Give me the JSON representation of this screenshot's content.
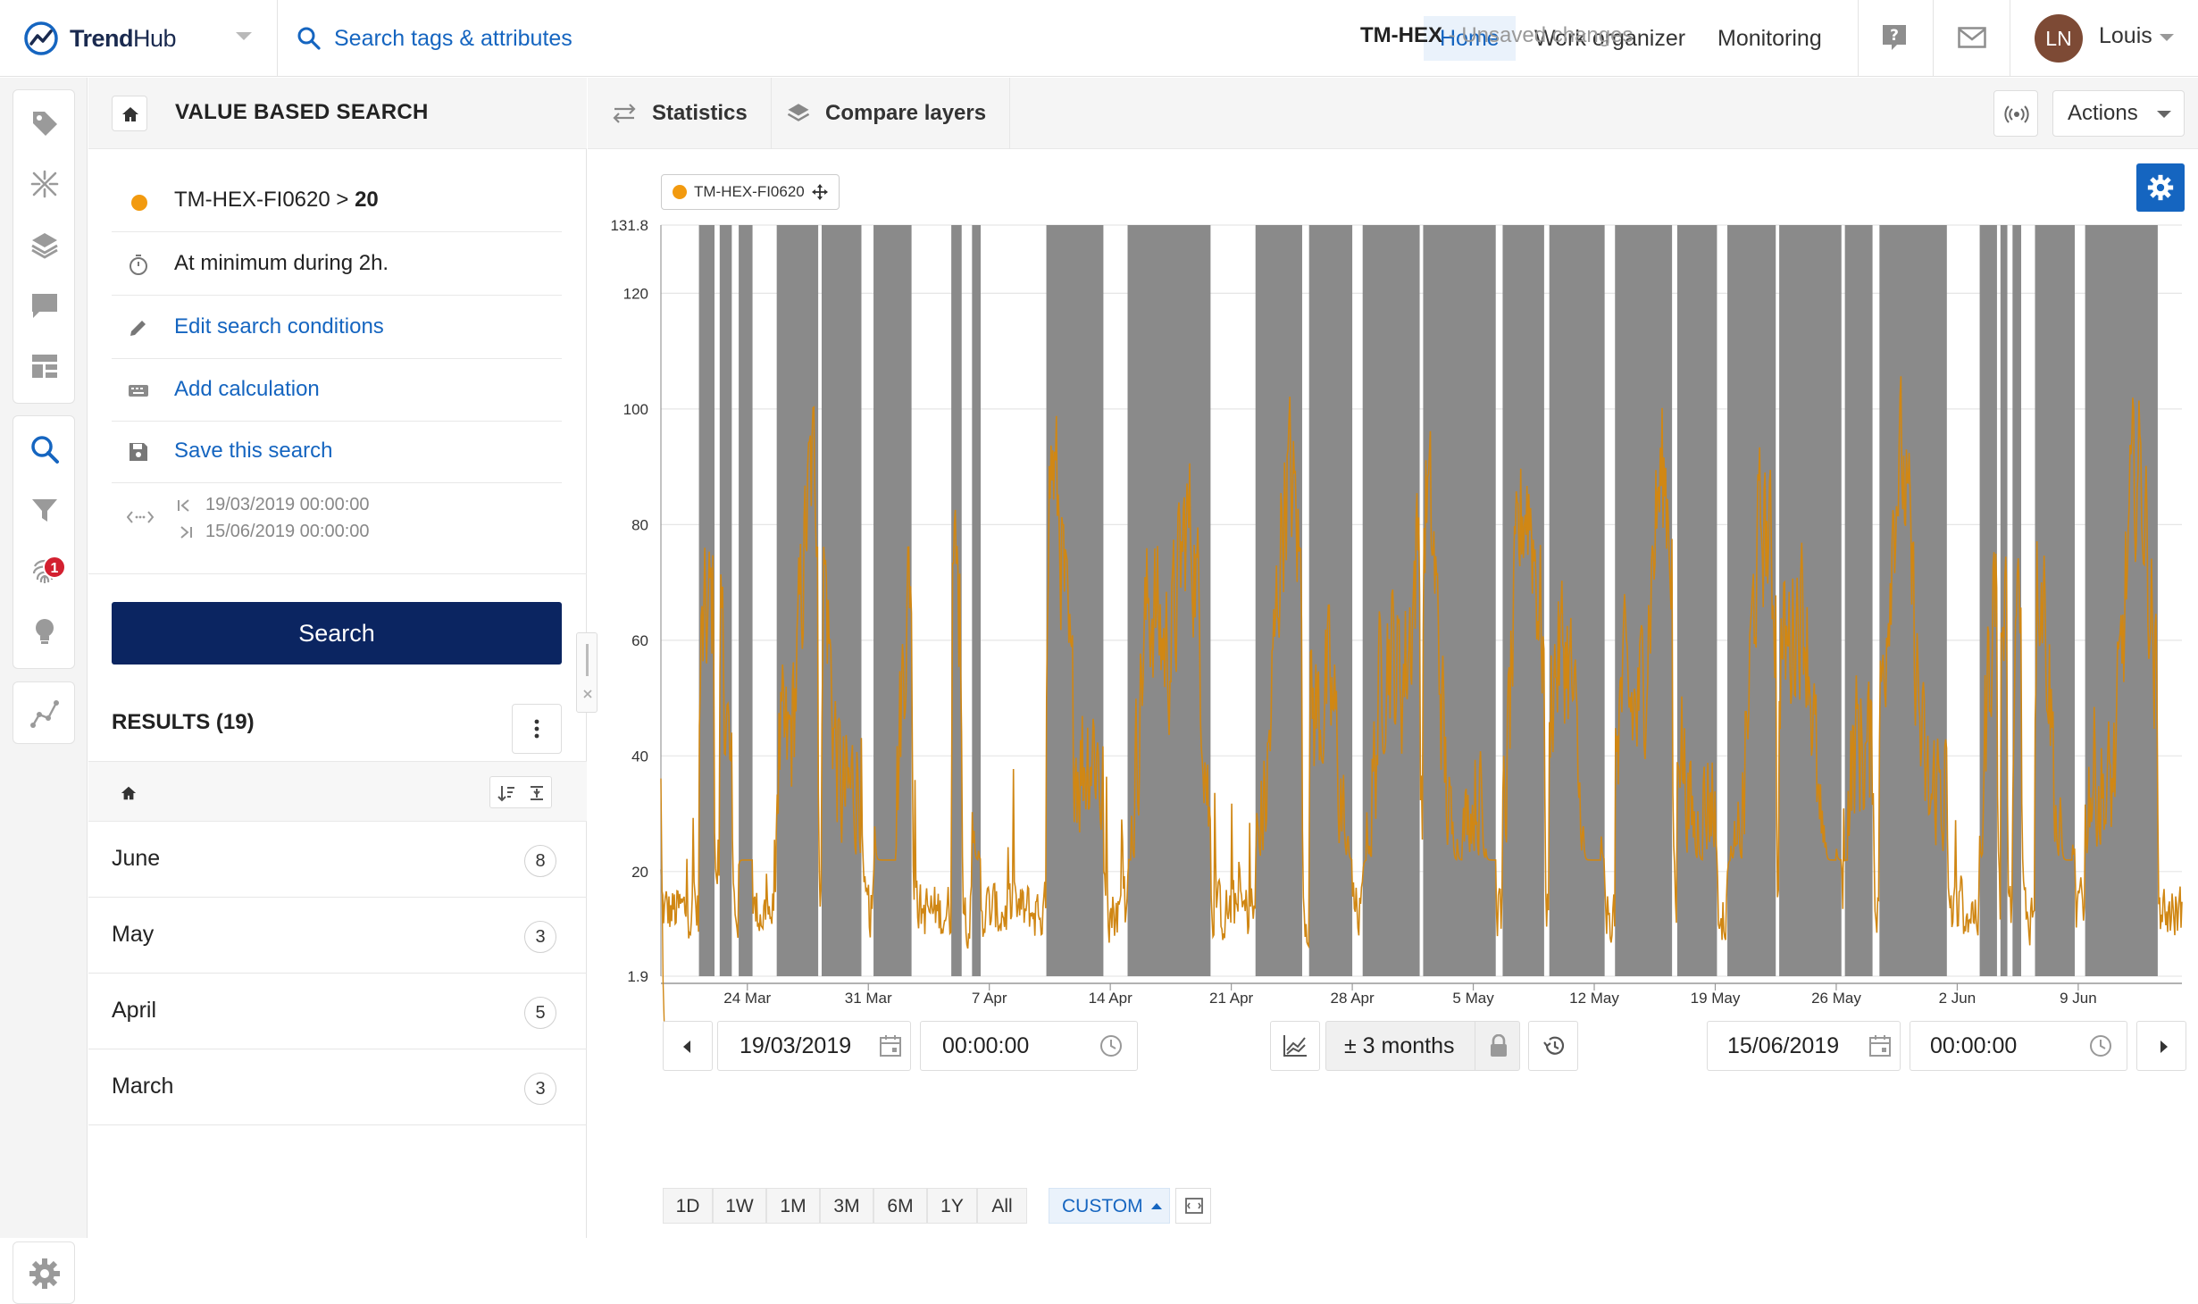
{
  "app": {
    "logo_text_bold": "Trend",
    "logo_text_light": "Hub",
    "search_label": "Search tags & attributes",
    "nav": [
      "Home",
      "Work organizer",
      "Monitoring"
    ],
    "user_initials": "LN",
    "user_name": "Louis",
    "filter_badge": "1"
  },
  "panel": {
    "title": "VALUE BASED SEARCH",
    "condition_tag": "TM-HEX-FI0620 >",
    "condition_value": "20",
    "duration": "At minimum during 2h.",
    "edit_label": "Edit search conditions",
    "calc_label": "Add calculation",
    "save_label": "Save this search",
    "range_start": "19/03/2019 00:00:00",
    "range_end": "15/06/2019 00:00:00",
    "search_button": "Search",
    "results_title": "RESULTS (19)",
    "results": [
      {
        "label": "June",
        "count": "8"
      },
      {
        "label": "May",
        "count": "3"
      },
      {
        "label": "April",
        "count": "5"
      },
      {
        "label": "March",
        "count": "3"
      }
    ]
  },
  "toolbar": {
    "statistics": "Statistics",
    "compare": "Compare layers",
    "view_name": "TM-HEX",
    "view_status": " - Unsaved changes",
    "actions": "Actions"
  },
  "legend": {
    "tag": "TM-HEX-FI0620"
  },
  "controls": {
    "start_date": "19/03/2019",
    "start_time": "00:00:00",
    "range": "± 3 months",
    "end_date": "15/06/2019",
    "end_time": "00:00:00",
    "zoom": [
      "1D",
      "1W",
      "1M",
      "3M",
      "6M",
      "1Y",
      "All"
    ],
    "zoom_custom": "CUSTOM"
  },
  "colors": {
    "accent": "#1565c0",
    "series": "#d08714",
    "series_low": "#f29a0f",
    "highlight": "#8a8a8a",
    "button": "#0b2561"
  },
  "chart_data": {
    "type": "line",
    "series_name": "TM-HEX-FI0620",
    "ylim": [
      1.9,
      131.8
    ],
    "y_ticks_labels": [
      "131.8",
      "120",
      "100",
      "80",
      "60",
      "40",
      "20",
      "1.9"
    ],
    "y_ticks": [
      131.8,
      120,
      100,
      80,
      60,
      40,
      20,
      1.9
    ],
    "x_tick_labels": [
      "24 Mar",
      "31 Mar",
      "7 Apr",
      "14 Apr",
      "21 Apr",
      "28 Apr",
      "5 May",
      "12 May",
      "19 May",
      "26 May",
      "2 Jun",
      "9 Jun"
    ],
    "x_tick_days": [
      5,
      12,
      19,
      26,
      33,
      40,
      47,
      54,
      61,
      68,
      75,
      82
    ],
    "x_range_days": [
      0,
      88
    ],
    "highlight_periods_days": [
      [
        2.2,
        3.1
      ],
      [
        3.4,
        4.1
      ],
      [
        4.5,
        5.3
      ],
      [
        6.7,
        9.1
      ],
      [
        9.3,
        11.6
      ],
      [
        12.3,
        14.5
      ],
      [
        16.8,
        17.4
      ],
      [
        18.0,
        18.5
      ],
      [
        22.3,
        25.6
      ],
      [
        27.0,
        31.8
      ],
      [
        34.4,
        37.1
      ],
      [
        37.5,
        40.0
      ],
      [
        40.6,
        43.9
      ],
      [
        44.1,
        48.3
      ],
      [
        48.7,
        51.1
      ],
      [
        51.4,
        54.6
      ],
      [
        55.2,
        58.5
      ],
      [
        58.8,
        61.1
      ],
      [
        61.7,
        64.5
      ],
      [
        64.7,
        68.3
      ],
      [
        68.5,
        70.1
      ],
      [
        70.5,
        74.4
      ],
      [
        76.3,
        77.3
      ],
      [
        77.5,
        77.9
      ],
      [
        78.2,
        78.7
      ],
      [
        79.5,
        81.8
      ],
      [
        82.4,
        86.6
      ]
    ]
  }
}
